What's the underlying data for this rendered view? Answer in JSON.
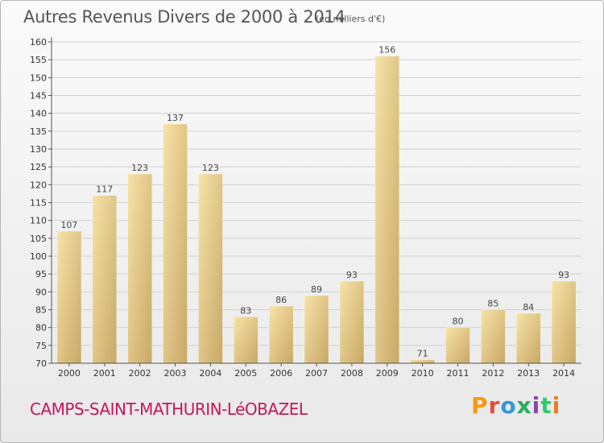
{
  "header": {
    "title": "Autres Revenus Divers de 2000 à 2014",
    "subtitle": "(en milliers d'€)"
  },
  "footer": {
    "commune": "CAMPS-SAINT-MATHURIN-LéOBAZEL",
    "logo_text": "Proxiti",
    "logo_colors": [
      "#f39c12",
      "#e74c3c",
      "#3498db",
      "#27ae60",
      "#8e44ad",
      "#2ecc71",
      "#e67e22"
    ]
  },
  "chart_data": {
    "type": "bar",
    "categories": [
      "2000",
      "2001",
      "2002",
      "2003",
      "2004",
      "2005",
      "2006",
      "2007",
      "2008",
      "2009",
      "2010",
      "2011",
      "2012",
      "2013",
      "2014"
    ],
    "values": [
      107,
      117,
      123,
      137,
      123,
      83,
      86,
      89,
      93,
      156,
      71,
      80,
      85,
      84,
      93
    ],
    "ylim": [
      70,
      160
    ],
    "yticks": [
      70,
      75,
      80,
      85,
      90,
      95,
      100,
      105,
      110,
      115,
      120,
      125,
      130,
      135,
      140,
      145,
      150,
      155,
      160
    ],
    "grid": true,
    "bar_color": "#e6c77f"
  }
}
